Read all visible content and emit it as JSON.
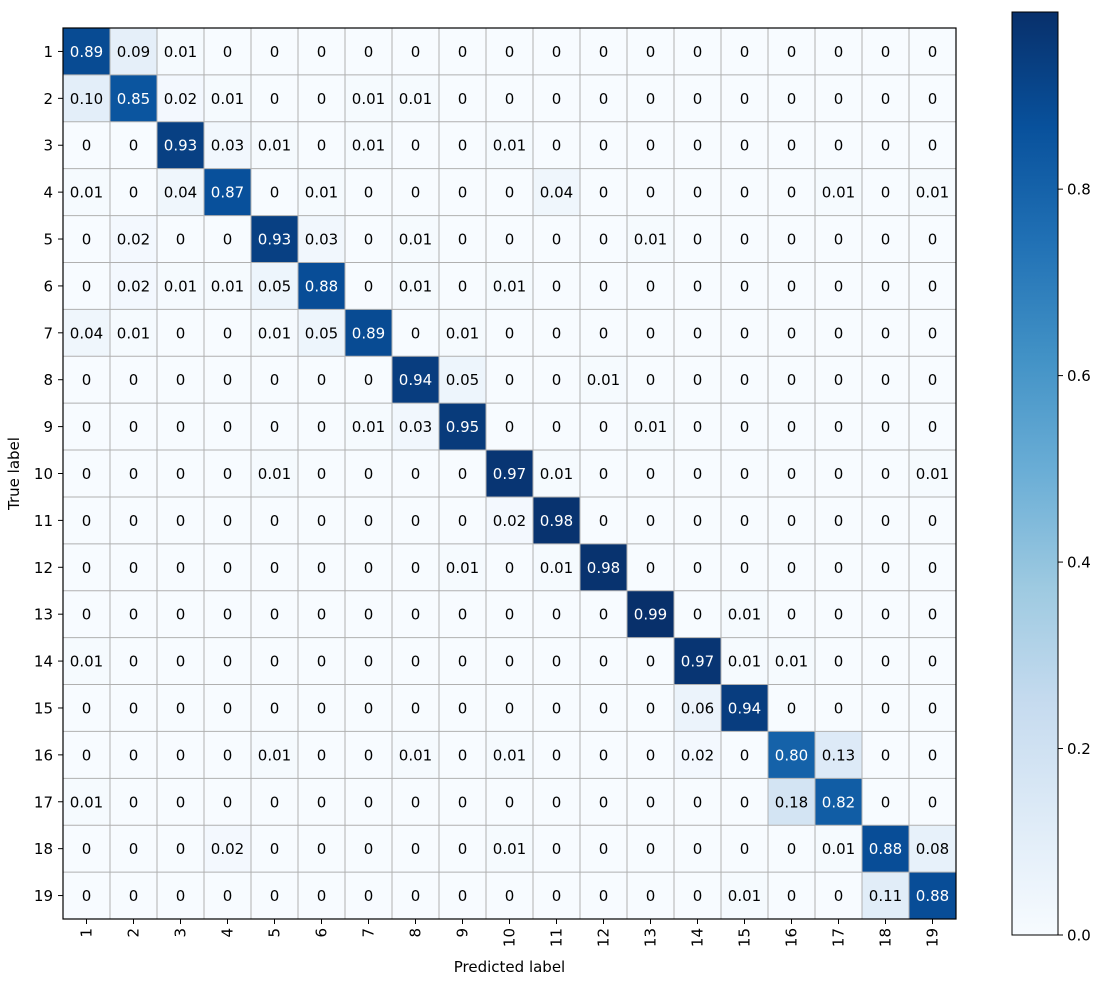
{
  "chart_data": {
    "type": "heatmap",
    "title": "",
    "xlabel": "Predicted label",
    "ylabel": "True label",
    "x_categories": [
      "1",
      "2",
      "3",
      "4",
      "5",
      "6",
      "7",
      "8",
      "9",
      "10",
      "11",
      "12",
      "13",
      "14",
      "15",
      "16",
      "17",
      "18",
      "19"
    ],
    "y_categories": [
      "1",
      "2",
      "3",
      "4",
      "5",
      "6",
      "7",
      "8",
      "9",
      "10",
      "11",
      "12",
      "13",
      "14",
      "15",
      "16",
      "17",
      "18",
      "19"
    ],
    "cell_labels": [
      [
        "0.89",
        "0.09",
        "0.01",
        "0",
        "0",
        "0",
        "0",
        "0",
        "0",
        "0",
        "0",
        "0",
        "0",
        "0",
        "0",
        "0",
        "0",
        "0",
        "0"
      ],
      [
        "0.10",
        "0.85",
        "0.02",
        "0.01",
        "0",
        "0",
        "0.01",
        "0.01",
        "0",
        "0",
        "0",
        "0",
        "0",
        "0",
        "0",
        "0",
        "0",
        "0",
        "0"
      ],
      [
        "0",
        "0",
        "0.93",
        "0.03",
        "0.01",
        "0",
        "0.01",
        "0",
        "0",
        "0.01",
        "0",
        "0",
        "0",
        "0",
        "0",
        "0",
        "0",
        "0",
        "0"
      ],
      [
        "0.01",
        "0",
        "0.04",
        "0.87",
        "0",
        "0.01",
        "0",
        "0",
        "0",
        "0",
        "0.04",
        "0",
        "0",
        "0",
        "0",
        "0",
        "0.01",
        "0",
        "0.01"
      ],
      [
        "0",
        "0.02",
        "0",
        "0",
        "0.93",
        "0.03",
        "0",
        "0.01",
        "0",
        "0",
        "0",
        "0",
        "0.01",
        "0",
        "0",
        "0",
        "0",
        "0",
        "0"
      ],
      [
        "0",
        "0.02",
        "0.01",
        "0.01",
        "0.05",
        "0.88",
        "0",
        "0.01",
        "0",
        "0.01",
        "0",
        "0",
        "0",
        "0",
        "0",
        "0",
        "0",
        "0",
        "0"
      ],
      [
        "0.04",
        "0.01",
        "0",
        "0",
        "0.01",
        "0.05",
        "0.89",
        "0",
        "0.01",
        "0",
        "0",
        "0",
        "0",
        "0",
        "0",
        "0",
        "0",
        "0",
        "0"
      ],
      [
        "0",
        "0",
        "0",
        "0",
        "0",
        "0",
        "0",
        "0.94",
        "0.05",
        "0",
        "0",
        "0.01",
        "0",
        "0",
        "0",
        "0",
        "0",
        "0",
        "0"
      ],
      [
        "0",
        "0",
        "0",
        "0",
        "0",
        "0",
        "0.01",
        "0.03",
        "0.95",
        "0",
        "0",
        "0",
        "0.01",
        "0",
        "0",
        "0",
        "0",
        "0",
        "0"
      ],
      [
        "0",
        "0",
        "0",
        "0",
        "0.01",
        "0",
        "0",
        "0",
        "0",
        "0.97",
        "0.01",
        "0",
        "0",
        "0",
        "0",
        "0",
        "0",
        "0",
        "0.01"
      ],
      [
        "0",
        "0",
        "0",
        "0",
        "0",
        "0",
        "0",
        "0",
        "0",
        "0.02",
        "0.98",
        "0",
        "0",
        "0",
        "0",
        "0",
        "0",
        "0",
        "0"
      ],
      [
        "0",
        "0",
        "0",
        "0",
        "0",
        "0",
        "0",
        "0",
        "0.01",
        "0",
        "0.01",
        "0.98",
        "0",
        "0",
        "0",
        "0",
        "0",
        "0",
        "0"
      ],
      [
        "0",
        "0",
        "0",
        "0",
        "0",
        "0",
        "0",
        "0",
        "0",
        "0",
        "0",
        "0",
        "0.99",
        "0",
        "0.01",
        "0",
        "0",
        "0",
        "0"
      ],
      [
        "0.01",
        "0",
        "0",
        "0",
        "0",
        "0",
        "0",
        "0",
        "0",
        "0",
        "0",
        "0",
        "0",
        "0.97",
        "0.01",
        "0.01",
        "0",
        "0",
        "0"
      ],
      [
        "0",
        "0",
        "0",
        "0",
        "0",
        "0",
        "0",
        "0",
        "0",
        "0",
        "0",
        "0",
        "0",
        "0.06",
        "0.94",
        "0",
        "0",
        "0",
        "0"
      ],
      [
        "0",
        "0",
        "0",
        "0",
        "0.01",
        "0",
        "0",
        "0.01",
        "0",
        "0.01",
        "0",
        "0",
        "0",
        "0.02",
        "0",
        "0.80",
        "0.13",
        "0",
        "0"
      ],
      [
        "0.01",
        "0",
        "0",
        "0",
        "0",
        "0",
        "0",
        "0",
        "0",
        "0",
        "0",
        "0",
        "0",
        "0",
        "0",
        "0.18",
        "0.82",
        "0",
        "0"
      ],
      [
        "0",
        "0",
        "0",
        "0.02",
        "0",
        "0",
        "0",
        "0",
        "0",
        "0.01",
        "0",
        "0",
        "0",
        "0",
        "0",
        "0",
        "0.01",
        "0.88",
        "0.08"
      ],
      [
        "0",
        "0",
        "0",
        "0",
        "0",
        "0",
        "0",
        "0",
        "0",
        "0",
        "0",
        "0",
        "0",
        "0",
        "0.01",
        "0",
        "0",
        "0.11",
        "0.88"
      ]
    ],
    "colorbar": {
      "colormap": "Blues",
      "range": [
        0.0,
        0.99
      ],
      "ticks": [
        0.0,
        0.2,
        0.4,
        0.6,
        0.8
      ],
      "tick_labels": [
        "0.0",
        "0.2",
        "0.4",
        "0.6",
        "0.8"
      ]
    },
    "grid": true,
    "text_color_threshold": 0.5,
    "colors": {
      "text_dark": "#000000",
      "text_light": "#ffffff",
      "grid": "#b0b0b0"
    }
  }
}
